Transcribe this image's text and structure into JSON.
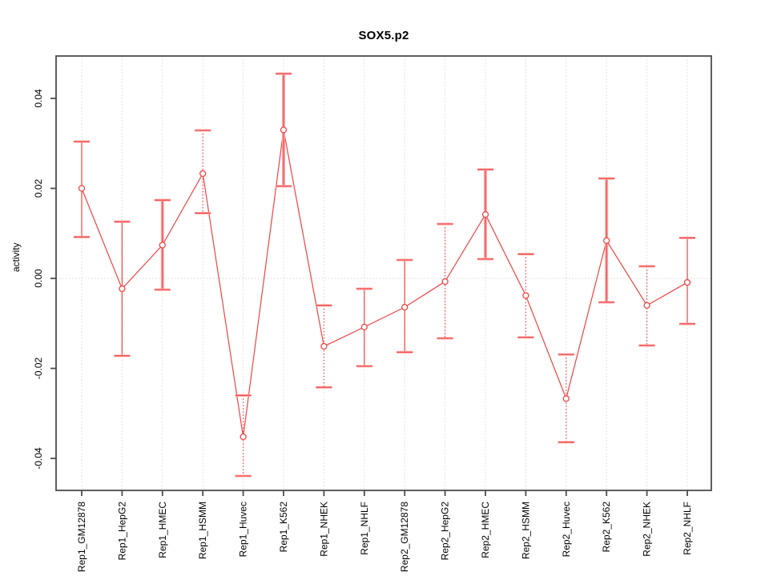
{
  "chart": {
    "title": "SOX5.p2",
    "ylabel": "activity"
  },
  "chart_data": {
    "type": "line",
    "title": "SOX5.p2",
    "xlabel": "",
    "ylabel": "activity",
    "ylim": [
      -0.048,
      0.048
    ],
    "ytick_values": [
      0.04,
      0.02,
      0.0,
      -0.02,
      -0.04
    ],
    "ytick_labels": [
      "0.04",
      "0.02",
      "0.00",
      "-0.02",
      "-0.04"
    ],
    "grid": "light dotted vertical line at every category; light dotted horizontal line at y=0",
    "legend_position": "none",
    "marker": "open-circle",
    "categories": [
      "Rep1_GM12878",
      "Rep1_HepG2",
      "Rep1_HMEC",
      "Rep1_HSMM",
      "Rep1_Huvec",
      "Rep1_K562",
      "Rep1_NHEK",
      "Rep1_NHLF",
      "Rep2_GM12878",
      "Rep2_HepG2",
      "Rep2_HMEC",
      "Rep2_HSMM",
      "Rep2_Huvec",
      "Rep2_K562",
      "Rep2_NHEK",
      "Rep2_NHLF"
    ],
    "series": [
      {
        "name": "activity",
        "values": [
          0.02,
          -0.0023,
          0.0074,
          0.0233,
          -0.0352,
          0.033,
          -0.0151,
          -0.0108,
          -0.0064,
          -0.0007,
          0.0142,
          -0.0038,
          -0.0267,
          0.0084,
          -0.006,
          -0.0009
        ],
        "ci_low": [
          0.0092,
          -0.0172,
          -0.0025,
          0.0145,
          -0.0439,
          0.0205,
          -0.0242,
          -0.0195,
          -0.0164,
          -0.0133,
          0.0043,
          -0.0131,
          -0.0364,
          -0.0053,
          -0.0149,
          -0.0101
        ],
        "ci_high": [
          0.0304,
          0.0126,
          0.0174,
          0.0329,
          -0.026,
          0.0455,
          -0.006,
          -0.0023,
          0.0041,
          0.0121,
          0.0242,
          0.0054,
          -0.0169,
          0.0222,
          0.0027,
          0.009
        ],
        "error_bar_styles": [
          "solid",
          "solid",
          "thick",
          "dotted",
          "dotted",
          "thick",
          "dotted",
          "solid",
          "solid",
          "dotted",
          "thick",
          "dotted",
          "dotted",
          "thick",
          "dotted",
          "solid"
        ]
      }
    ],
    "colors": {
      "series_red": "#f04343",
      "error_band_pink": "#ffaaaa",
      "grid_gray": "#d9d9d9",
      "axis_gray": "#4d4d4d",
      "text_black": "#000000",
      "background": "#ffffff"
    }
  }
}
